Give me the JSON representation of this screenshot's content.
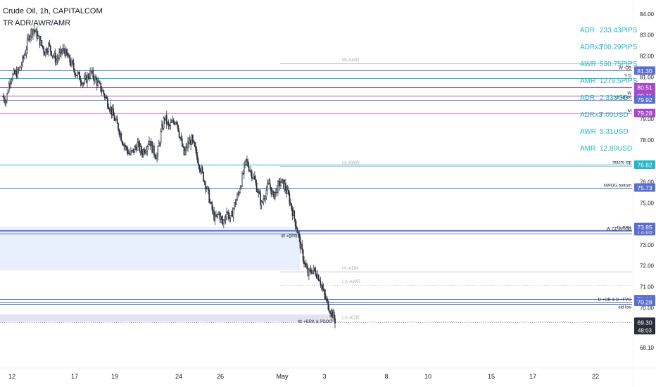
{
  "header": {
    "title": "Crude Oil, 1h, CAPITALCOM",
    "indicator": "TR ADR/AWR/AMR"
  },
  "colors": {
    "candle": "#2a2e39",
    "blue_line": "#5b6fcf",
    "cyan_line": "#26b5c6",
    "purple_line": "#a64ac9",
    "pink_line": "#e391c6",
    "grey_level": "#c3c6cc",
    "zone_blue": "#e8f0fe",
    "zone_purple": "#e6e1f2",
    "stats_text": "#26b5c6",
    "tag_blue": "#5b6fcf",
    "tag_purple": "#a64ac9",
    "tag_dark": "#2a2e39"
  },
  "stats": [
    {
      "label": "ADR",
      "value": "233.43PIPS"
    },
    {
      "label": "ADRx3",
      "value": "700.29PIPS"
    },
    {
      "label": "AWR",
      "value": "530.75PIPS"
    },
    {
      "label": "AMR",
      "value": "1279.5PIPS"
    },
    {
      "label": "ADR",
      "value": "2.33USD"
    },
    {
      "label": "ADRx3",
      "value": "7.00USD"
    },
    {
      "label": "AWR",
      "value": "5.31USD"
    },
    {
      "label": "AMR",
      "value": "12.80USD"
    }
  ],
  "chart_data": {
    "type": "candlestick",
    "symbol": "Crude Oil",
    "interval": "1h",
    "source": "CAPITALCOM",
    "x_ticks": [
      "12",
      "17",
      "19",
      "24",
      "26",
      "May",
      "3",
      "8",
      "10",
      "15",
      "17",
      "22"
    ],
    "y_ticks": [
      "84.00",
      "83.00",
      "82.00",
      "81.00",
      "79.00",
      "78.00",
      "76.00",
      "75.00",
      "73.00",
      "72.00",
      "71.00",
      "70.00",
      "68.10"
    ],
    "y_range": [
      67.9,
      84.4
    ],
    "price_path": [
      [
        0,
        80.1
      ],
      [
        1,
        79.9
      ],
      [
        2,
        80.9
      ],
      [
        3,
        81.1
      ],
      [
        4,
        81.2
      ],
      [
        5,
        81.6
      ],
      [
        6,
        82.2
      ],
      [
        7,
        83.0
      ],
      [
        8,
        83.3
      ],
      [
        9,
        83.0
      ],
      [
        10,
        82.6
      ],
      [
        11,
        82.2
      ],
      [
        12,
        82.5
      ],
      [
        13,
        82.1
      ],
      [
        14,
        81.8
      ],
      [
        15,
        82.1
      ],
      [
        16,
        82.3
      ],
      [
        17,
        81.9
      ],
      [
        18,
        81.6
      ],
      [
        19,
        81.2
      ],
      [
        20,
        81.0
      ],
      [
        21,
        80.7
      ],
      [
        22,
        81.0
      ],
      [
        23,
        81.2
      ],
      [
        24,
        80.9
      ],
      [
        25,
        80.6
      ],
      [
        26,
        80.3
      ],
      [
        27,
        79.9
      ],
      [
        28,
        79.5
      ],
      [
        29,
        79.0
      ],
      [
        30,
        78.6
      ],
      [
        31,
        78.0
      ],
      [
        32,
        77.6
      ],
      [
        33,
        77.3
      ],
      [
        34,
        77.5
      ],
      [
        35,
        77.8
      ],
      [
        36,
        77.4
      ],
      [
        37,
        77.6
      ],
      [
        38,
        78.0
      ],
      [
        39,
        77.5
      ],
      [
        40,
        77.2
      ],
      [
        41,
        78.3
      ],
      [
        42,
        79.1
      ],
      [
        43,
        78.6
      ],
      [
        44,
        78.8
      ],
      [
        45,
        79.0
      ],
      [
        46,
        78.1
      ],
      [
        47,
        77.3
      ],
      [
        48,
        77.8
      ],
      [
        49,
        78.0
      ],
      [
        50,
        77.4
      ],
      [
        51,
        76.8
      ],
      [
        52,
        76.2
      ],
      [
        53,
        75.6
      ],
      [
        54,
        74.8
      ],
      [
        55,
        74.2
      ],
      [
        56,
        74.5
      ],
      [
        57,
        74.0
      ],
      [
        58,
        74.6
      ],
      [
        59,
        74.2
      ],
      [
        60,
        74.9
      ],
      [
        61,
        75.4
      ],
      [
        62,
        76.2
      ],
      [
        63,
        77.0
      ],
      [
        64,
        76.6
      ],
      [
        65,
        76.2
      ],
      [
        66,
        75.6
      ],
      [
        67,
        74.9
      ],
      [
        68,
        75.5
      ],
      [
        69,
        75.9
      ],
      [
        70,
        75.3
      ],
      [
        71,
        75.7
      ],
      [
        72,
        76.0
      ],
      [
        73,
        75.8
      ],
      [
        74,
        75.3
      ],
      [
        75,
        74.6
      ],
      [
        76,
        73.9
      ],
      [
        77,
        73.0
      ],
      [
        78,
        72.2
      ],
      [
        79,
        71.6
      ],
      [
        80,
        71.8
      ],
      [
        81,
        71.7
      ],
      [
        82,
        71.4
      ],
      [
        83,
        70.7
      ],
      [
        84,
        70.2
      ],
      [
        85,
        69.8
      ],
      [
        86,
        69.4
      ]
    ],
    "levels": [
      {
        "price": 81.66,
        "color": "grey",
        "style": "solid",
        "x_start": "mid",
        "label": "Hi-AMR",
        "label_pos": "left"
      },
      {
        "price": 81.3,
        "color": "blue",
        "style": "solid",
        "x_start": "full",
        "label": "W -OB",
        "label_pos": "right",
        "tag": "81.30",
        "tag_color": "blue"
      },
      {
        "price": 80.95,
        "color": "cyan",
        "style": "solid",
        "x_start": "full",
        "label": "Y D",
        "label_pos": "right"
      },
      {
        "price": 80.51,
        "color": "purple",
        "style": "solid",
        "x_start": "full",
        "tag": "80.51",
        "tag_color": "purple"
      },
      {
        "price": 80.11,
        "color": "purple",
        "style": "solid",
        "x_start": "full",
        "label": "W",
        "label_pos": "right",
        "tag": "80.11",
        "tag_color": "purple"
      },
      {
        "price": 79.92,
        "color": "blue",
        "style": "solid",
        "x_start": "full",
        "label": "W +BRK",
        "label_pos": "right",
        "tag": "79.92",
        "tag_color": "blue"
      },
      {
        "price": 79.28,
        "color": "pink",
        "style": "solid",
        "x_start": "full",
        "label": "M",
        "label_pos": "right",
        "tag": "79.28",
        "tag_color": "purple"
      },
      {
        "price": 76.82,
        "color": "cyan",
        "style": "solid",
        "x_start": "full",
        "label": "macro top",
        "label_pos": "right",
        "tag": "76.82",
        "tag_color": "cyan"
      },
      {
        "price": 76.75,
        "color": "grey",
        "style": "solid",
        "x_start": "mid",
        "label": "Hi-AWR",
        "label_pos": "left"
      },
      {
        "price": 75.73,
        "color": "blue",
        "style": "solid",
        "x_start": "full",
        "label": "NWOG bottom",
        "label_pos": "right",
        "tag": "75.73",
        "tag_color": "blue"
      },
      {
        "price": 73.7,
        "color": "blue",
        "style": "solid",
        "x_start": "full",
        "label": "D -BRK",
        "label_pos": "right",
        "tag": "73.70",
        "tag_color": "blue"
      },
      {
        "price": 73.65,
        "color": "blue",
        "style": "double",
        "x_start": "full",
        "label": "W CE    W -OB",
        "label_pos": "right",
        "tag": "73.65",
        "tag_color": "blue"
      },
      {
        "price": 71.72,
        "color": "grey",
        "style": "solid",
        "x_start": "mid",
        "label": "Hi-ADR",
        "label_pos": "left"
      },
      {
        "price": 71.1,
        "color": "grey",
        "style": "dotted",
        "x_start": "mid",
        "label": "Lo-AWR",
        "label_pos": "left"
      },
      {
        "price": 70.41,
        "color": "blue",
        "style": "solid",
        "x_start": "full",
        "tag": "70.41",
        "tag_color": "blue"
      },
      {
        "price": 70.28,
        "color": "blue",
        "style": "double",
        "x_start": "full",
        "label": "D +OB & D +FVG",
        "label_pos": "right",
        "tag": "70.28",
        "tag_color": "blue"
      },
      {
        "price": 69.92,
        "color": "grey",
        "style": "none",
        "x_start": "full",
        "label": "old low",
        "label_pos": "right"
      },
      {
        "price": 69.38,
        "color": "grey",
        "style": "dotted",
        "x_start": "mid",
        "label": "Lo-ADR",
        "label_pos": "left"
      }
    ],
    "extra_tag": {
      "price": 73.85,
      "tag": "73.85",
      "tag_color": "blue"
    },
    "last_price": {
      "price": 69.3,
      "tag": "69.30",
      "countdown": "48:03"
    },
    "zones": [
      {
        "from": 73.85,
        "to": 71.78,
        "x_end_bar": 77,
        "color": "blue",
        "label": "W +BPR"
      },
      {
        "from": 69.68,
        "to": 69.33,
        "x_end_bar": 86,
        "color": "purple",
        "label": "4h +BRK & PDOG"
      }
    ]
  }
}
